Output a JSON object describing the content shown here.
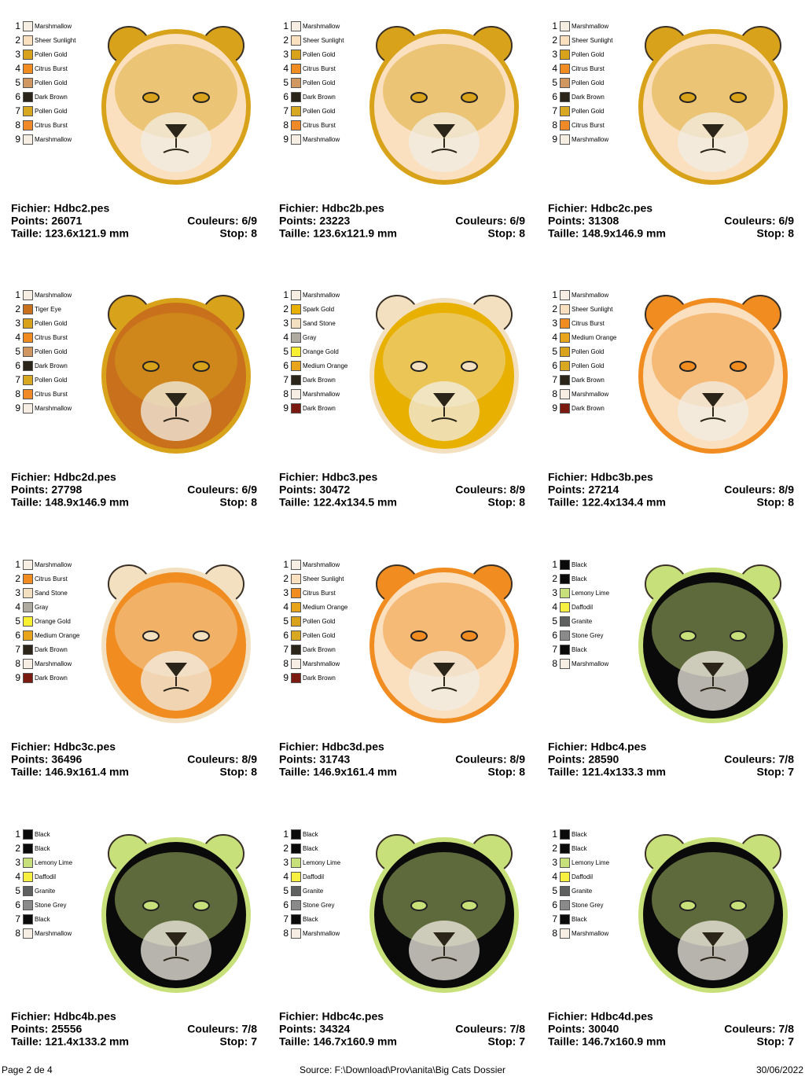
{
  "cells": [
    {
      "file": "Fichier: Hdbc2.pes",
      "points": "Points: 26071",
      "colors_count": "Couleurs: 6/9",
      "size": "Taille: 123.6x121.9 mm",
      "stop": "Stop: 8",
      "colors": [
        [
          "1",
          "Marshmallow",
          "#f6eee2"
        ],
        [
          "2",
          "Sheer Sunlight",
          "#fbe0c0"
        ],
        [
          "3",
          "Pollen Gold",
          "#d8a21a"
        ],
        [
          "4",
          "Citrus Burst",
          "#f08c20"
        ],
        [
          "5",
          "Pollen Gold",
          "#d09860"
        ],
        [
          "6",
          "Dark Brown",
          "#2b2418"
        ],
        [
          "7",
          "Pollen Gold",
          "#d8a820"
        ],
        [
          "8",
          "Citrus Burst",
          "#f08a28"
        ],
        [
          "9",
          "Marshmallow",
          "#f6eee2"
        ]
      ]
    },
    {
      "file": "Fichier: Hdbc2b.pes",
      "points": "Points: 23223",
      "colors_count": "Couleurs: 6/9",
      "size": "Taille: 123.6x121.9 mm",
      "stop": "Stop: 8",
      "colors": [
        [
          "1",
          "Marshmallow",
          "#f6eee2"
        ],
        [
          "2",
          "Sheer Sunlight",
          "#fbe0c0"
        ],
        [
          "3",
          "Pollen Gold",
          "#d8a21a"
        ],
        [
          "4",
          "Citrus Burst",
          "#f08c20"
        ],
        [
          "5",
          "Pollen Gold",
          "#d09860"
        ],
        [
          "6",
          "Dark Brown",
          "#2b2418"
        ],
        [
          "7",
          "Pollen Gold",
          "#d8a820"
        ],
        [
          "8",
          "Citrus Burst",
          "#f08a28"
        ],
        [
          "9",
          "Marshmallow",
          "#f6eee2"
        ]
      ]
    },
    {
      "file": "Fichier: Hdbc2c.pes",
      "points": "Points: 31308",
      "colors_count": "Couleurs: 6/9",
      "size": "Taille: 148.9x146.9 mm",
      "stop": "Stop: 8",
      "colors": [
        [
          "1",
          "Marshmallow",
          "#f6eee2"
        ],
        [
          "2",
          "Sheer Sunlight",
          "#fbe0c0"
        ],
        [
          "3",
          "Pollen Gold",
          "#d8a21a"
        ],
        [
          "4",
          "Citrus Burst",
          "#f08c20"
        ],
        [
          "5",
          "Pollen Gold",
          "#d09860"
        ],
        [
          "6",
          "Dark Brown",
          "#2b2418"
        ],
        [
          "7",
          "Pollen Gold",
          "#d8a820"
        ],
        [
          "8",
          "Citrus Burst",
          "#f08a28"
        ],
        [
          "9",
          "Marshmallow",
          "#f6eee2"
        ]
      ]
    },
    {
      "file": "Fichier: Hdbc2d.pes",
      "points": "Points: 27798",
      "colors_count": "Couleurs: 6/9",
      "size": "Taille: 148.9x146.9 mm",
      "stop": "Stop: 8",
      "colors": [
        [
          "1",
          "Marshmallow",
          "#f6eee2"
        ],
        [
          "2",
          "Tiger Eye",
          "#c8701c"
        ],
        [
          "3",
          "Pollen Gold",
          "#d8a21a"
        ],
        [
          "4",
          "Citrus Burst",
          "#f08c20"
        ],
        [
          "5",
          "Pollen Gold",
          "#d09860"
        ],
        [
          "6",
          "Dark Brown",
          "#2b2418"
        ],
        [
          "7",
          "Pollen Gold",
          "#d8a820"
        ],
        [
          "8",
          "Citrus Burst",
          "#f08a28"
        ],
        [
          "9",
          "Marshmallow",
          "#f6eee2"
        ]
      ]
    },
    {
      "file": "Fichier: Hdbc3.pes",
      "points": "Points: 30472",
      "colors_count": "Couleurs: 8/9",
      "size": "Taille: 122.4x134.5 mm",
      "stop": "Stop: 8",
      "colors": [
        [
          "1",
          "Marshmallow",
          "#f6eee2"
        ],
        [
          "2",
          "Spark Gold",
          "#e8b000"
        ],
        [
          "3",
          "Sand Stone",
          "#f2e0c0"
        ],
        [
          "4",
          "Gray",
          "#b0aba0"
        ],
        [
          "5",
          "Orange Gold",
          "#f8f030"
        ],
        [
          "6",
          "Medium Orange",
          "#e8a41a"
        ],
        [
          "7",
          "Dark Brown",
          "#2b2418"
        ],
        [
          "8",
          "Marshmallow",
          "#f6eee2"
        ],
        [
          "9",
          "Dark Brown",
          "#7a1a10"
        ]
      ]
    },
    {
      "file": "Fichier: Hdbc3b.pes",
      "points": "Points: 27214",
      "colors_count": "Couleurs: 8/9",
      "size": "Taille: 122.4x134.4 mm",
      "stop": "Stop: 8",
      "colors": [
        [
          "1",
          "Marshmallow",
          "#f6eee2"
        ],
        [
          "2",
          "Sheer Sunlight",
          "#fbe0c0"
        ],
        [
          "3",
          "Citrus Burst",
          "#f08c20"
        ],
        [
          "4",
          "Medium Orange",
          "#e8a41a"
        ],
        [
          "5",
          "Pollen Gold",
          "#d8a21a"
        ],
        [
          "6",
          "Pollen Gold",
          "#d8a820"
        ],
        [
          "7",
          "Dark Brown",
          "#2b2418"
        ],
        [
          "8",
          "Marshmallow",
          "#f6eee2"
        ],
        [
          "9",
          "Dark Brown",
          "#7a1a10"
        ]
      ]
    },
    {
      "file": "Fichier: Hdbc3c.pes",
      "points": "Points: 36496",
      "colors_count": "Couleurs: 8/9",
      "size": "Taille: 146.9x161.4 mm",
      "stop": "Stop: 8",
      "colors": [
        [
          "1",
          "Marshmallow",
          "#f6eee2"
        ],
        [
          "2",
          "Citrus Burst",
          "#f08c20"
        ],
        [
          "3",
          "Sand Stone",
          "#f2e0c0"
        ],
        [
          "4",
          "Gray",
          "#b0aba0"
        ],
        [
          "5",
          "Orange Gold",
          "#f8f030"
        ],
        [
          "6",
          "Medium Orange",
          "#e8a41a"
        ],
        [
          "7",
          "Dark Brown",
          "#2b2418"
        ],
        [
          "8",
          "Marshmallow",
          "#f6eee2"
        ],
        [
          "9",
          "Dark Brown",
          "#7a1a10"
        ]
      ]
    },
    {
      "file": "Fichier: Hdbc3d.pes",
      "points": "Points: 31743",
      "colors_count": "Couleurs: 8/9",
      "size": "Taille: 146.9x161.4 mm",
      "stop": "Stop: 8",
      "colors": [
        [
          "1",
          "Marshmallow",
          "#f6eee2"
        ],
        [
          "2",
          "Sheer Sunlight",
          "#fbe0c0"
        ],
        [
          "3",
          "Citrus Burst",
          "#f08c20"
        ],
        [
          "4",
          "Medium Orange",
          "#e8a41a"
        ],
        [
          "5",
          "Pollen Gold",
          "#d8a21a"
        ],
        [
          "6",
          "Pollen Gold",
          "#d8a820"
        ],
        [
          "7",
          "Dark Brown",
          "#2b2418"
        ],
        [
          "8",
          "Marshmallow",
          "#f6eee2"
        ],
        [
          "9",
          "Dark Brown",
          "#7a1a10"
        ]
      ]
    },
    {
      "file": "Fichier: Hdbc4.pes",
      "points": "Points: 28590",
      "colors_count": "Couleurs: 7/8",
      "size": "Taille: 121.4x133.3 mm",
      "stop": "Stop: 7",
      "colors": [
        [
          "1",
          "Black",
          "#0a0a0a"
        ],
        [
          "2",
          "Black",
          "#0a0a0a"
        ],
        [
          "3",
          "Lemony Lime",
          "#c8e07a"
        ],
        [
          "4",
          "Daffodil",
          "#f8f040"
        ],
        [
          "5",
          "Granite",
          "#5f6060"
        ],
        [
          "6",
          "Stone Grey",
          "#8a8a8a"
        ],
        [
          "7",
          "Black",
          "#0a0a0a"
        ],
        [
          "8",
          "Marshmallow",
          "#f6eee2"
        ]
      ]
    },
    {
      "file": "Fichier: Hdbc4b.pes",
      "points": "Points: 25556",
      "colors_count": "Couleurs: 7/8",
      "size": "Taille: 121.4x133.2 mm",
      "stop": "Stop: 7",
      "colors": [
        [
          "1",
          "Black",
          "#0a0a0a"
        ],
        [
          "2",
          "Black",
          "#0a0a0a"
        ],
        [
          "3",
          "Lemony Lime",
          "#c8e07a"
        ],
        [
          "4",
          "Daffodil",
          "#f8f040"
        ],
        [
          "5",
          "Granite",
          "#5f6060"
        ],
        [
          "6",
          "Stone Grey",
          "#8a8a8a"
        ],
        [
          "7",
          "Black",
          "#0a0a0a"
        ],
        [
          "8",
          "Marshmallow",
          "#f6eee2"
        ]
      ]
    },
    {
      "file": "Fichier: Hdbc4c.pes",
      "points": "Points: 34324",
      "colors_count": "Couleurs: 7/8",
      "size": "Taille: 146.7x160.9 mm",
      "stop": "Stop: 7",
      "colors": [
        [
          "1",
          "Black",
          "#0a0a0a"
        ],
        [
          "2",
          "Black",
          "#0a0a0a"
        ],
        [
          "3",
          "Lemony Lime",
          "#c8e07a"
        ],
        [
          "4",
          "Daffodil",
          "#f8f040"
        ],
        [
          "5",
          "Granite",
          "#5f6060"
        ],
        [
          "6",
          "Stone Grey",
          "#8a8a8a"
        ],
        [
          "7",
          "Black",
          "#0a0a0a"
        ],
        [
          "8",
          "Marshmallow",
          "#f6eee2"
        ]
      ]
    },
    {
      "file": "Fichier: Hdbc4d.pes",
      "points": "Points: 30040",
      "colors_count": "Couleurs: 7/8",
      "size": "Taille: 146.7x160.9 mm",
      "stop": "Stop: 7",
      "colors": [
        [
          "1",
          "Black",
          "#0a0a0a"
        ],
        [
          "2",
          "Black",
          "#0a0a0a"
        ],
        [
          "3",
          "Lemony Lime",
          "#c8e07a"
        ],
        [
          "4",
          "Daffodil",
          "#f8f040"
        ],
        [
          "5",
          "Granite",
          "#5f6060"
        ],
        [
          "6",
          "Stone Grey",
          "#8a8a8a"
        ],
        [
          "7",
          "Black",
          "#0a0a0a"
        ],
        [
          "8",
          "Marshmallow",
          "#f6eee2"
        ]
      ]
    }
  ],
  "footer": {
    "page": "Page 2 de 4",
    "source": "Source: F:\\Download\\Prov\\anita\\Big Cats Dossier",
    "date": "30/06/2022"
  }
}
